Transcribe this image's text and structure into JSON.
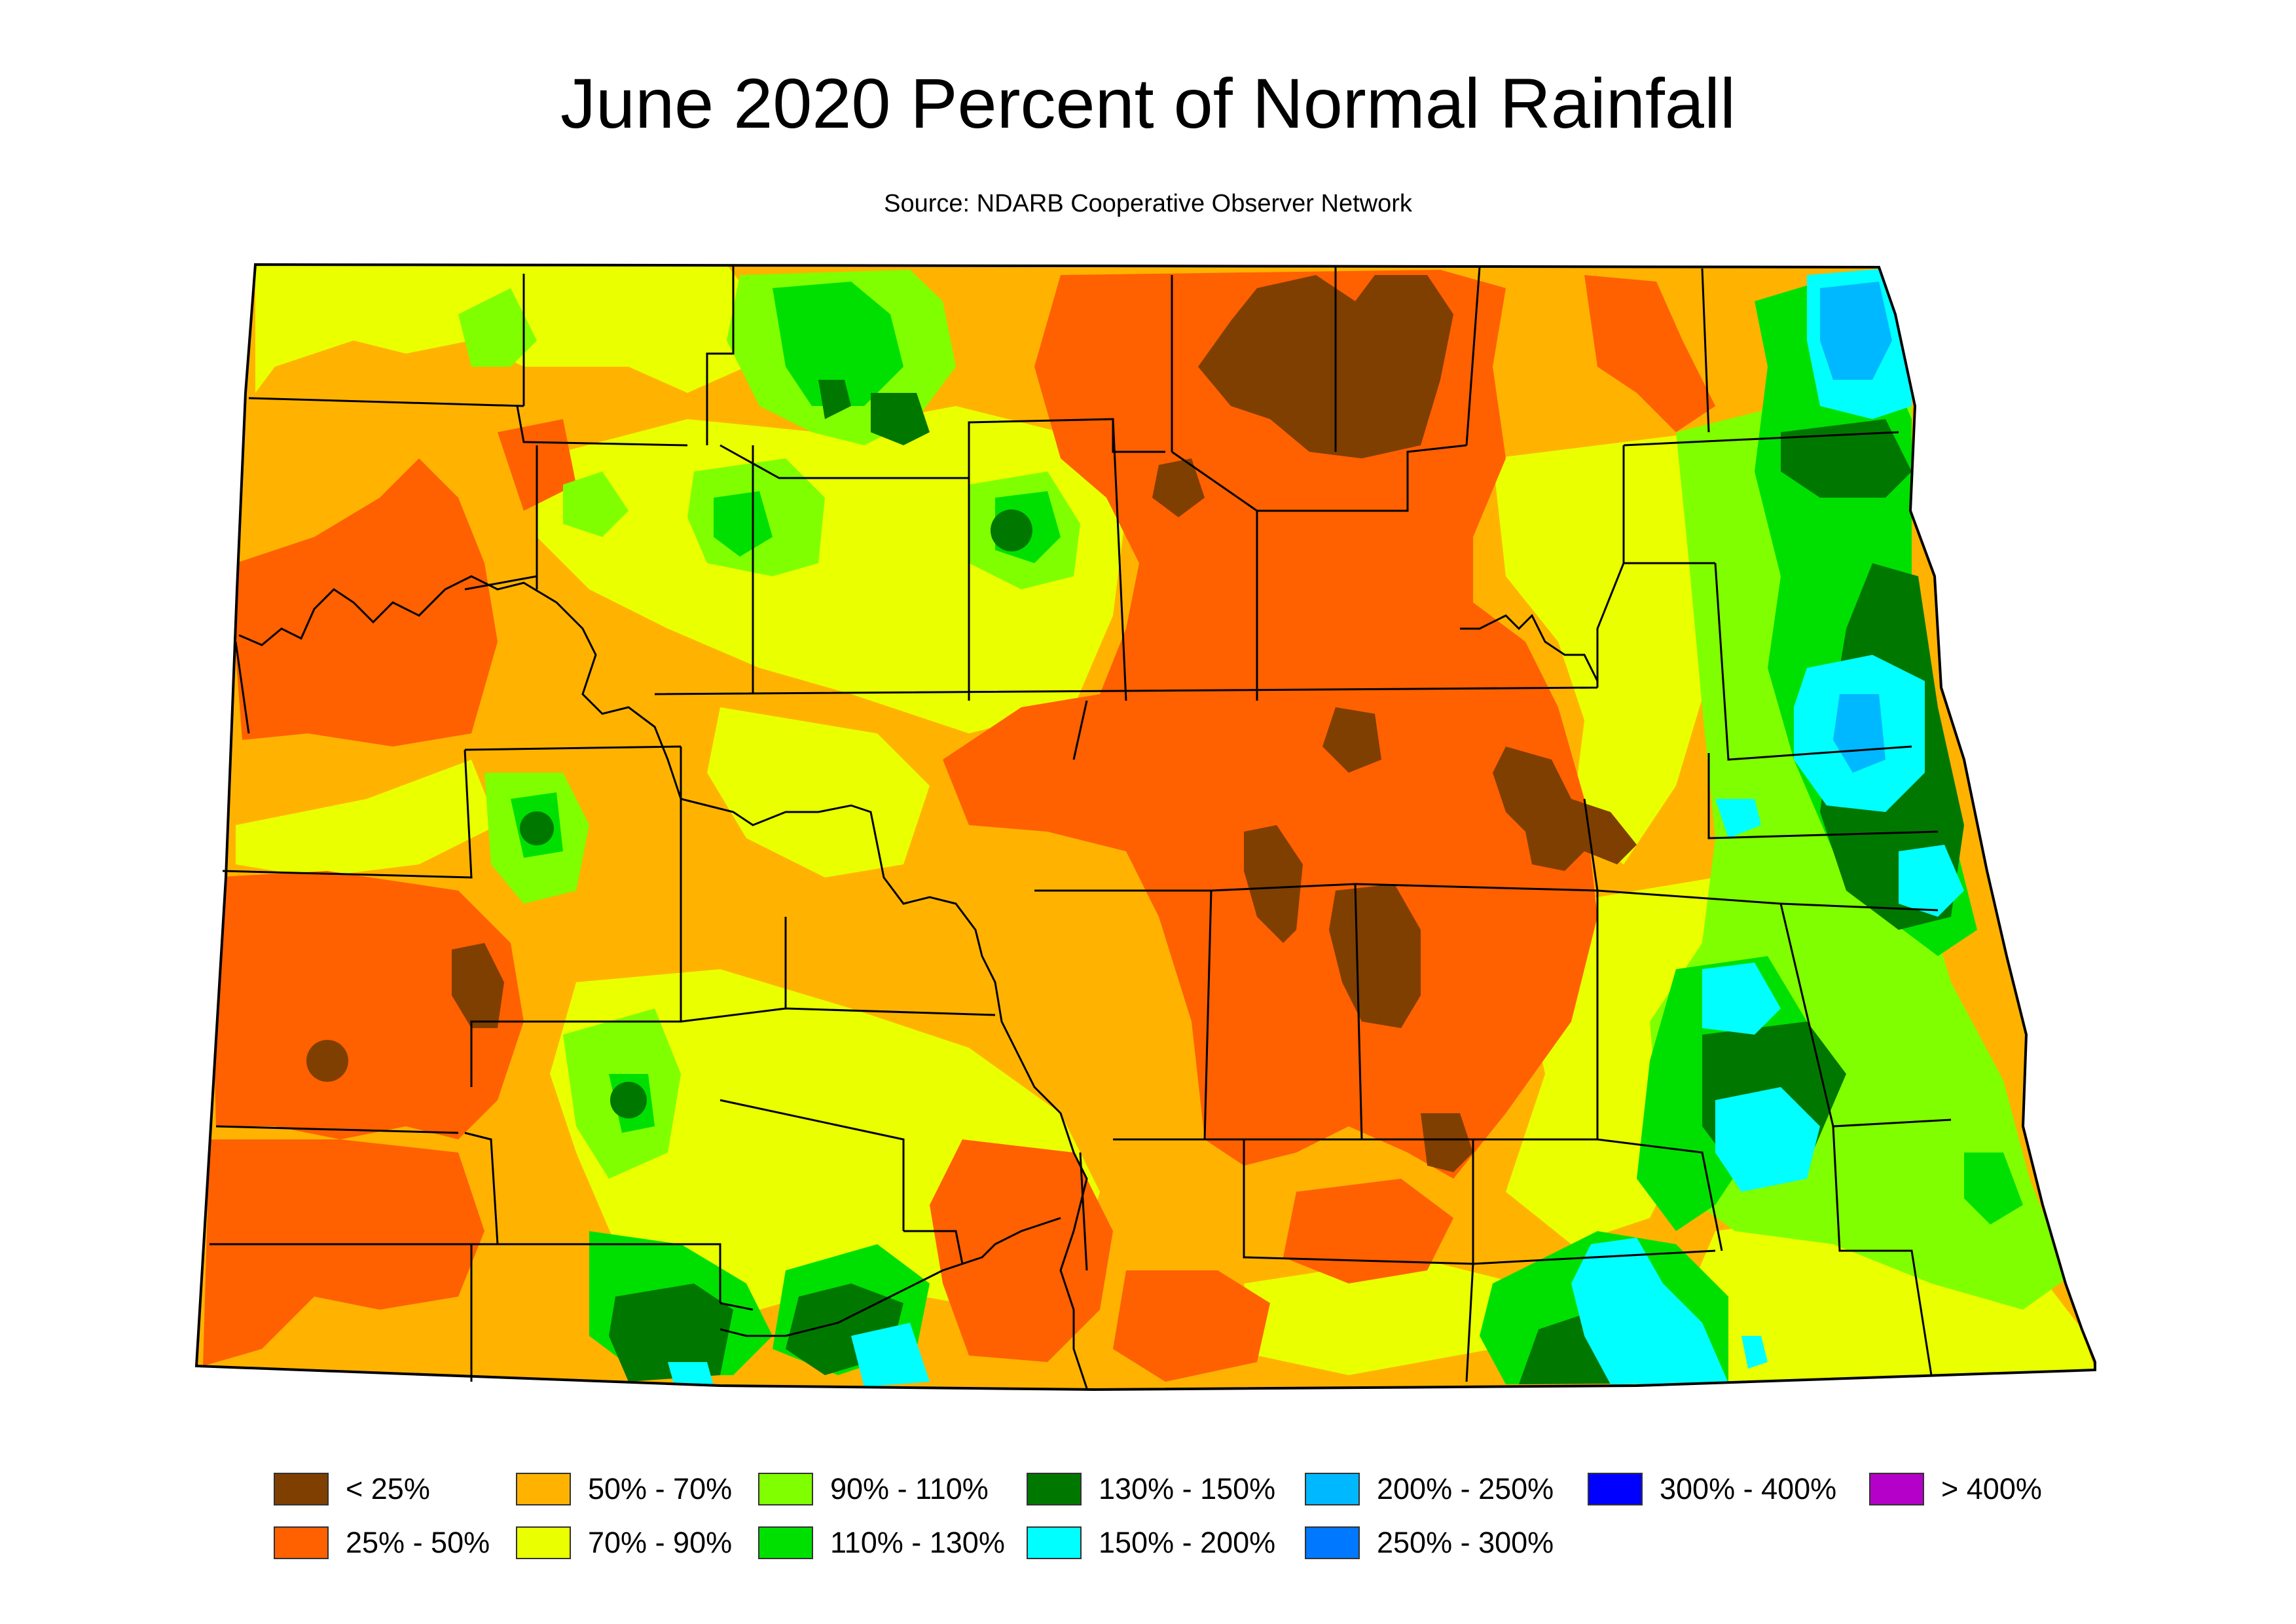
{
  "title": "June 2020 Percent of Normal Rainfall",
  "subtitle": "Source: NDARB Cooperative Observer Network",
  "legend": [
    {
      "label": "< 25%",
      "color": "#7f3f00"
    },
    {
      "label": "25% - 50%",
      "color": "#ff6000"
    },
    {
      "label": "50% - 70%",
      "color": "#ffb300"
    },
    {
      "label": "70% - 90%",
      "color": "#eaff00"
    },
    {
      "label": "90% - 110%",
      "color": "#80ff00"
    },
    {
      "label": "110% - 130%",
      "color": "#00e000"
    },
    {
      "label": "130% - 150%",
      "color": "#007800"
    },
    {
      "label": "150% - 200%",
      "color": "#00ffff"
    },
    {
      "label": "200% - 250%",
      "color": "#00b8ff"
    },
    {
      "label": "250% - 300%",
      "color": "#0078ff"
    },
    {
      "label": "300% - 400%",
      "color": "#0000ff"
    },
    {
      "label": "> 400%",
      "color": "#b400c8"
    }
  ]
}
